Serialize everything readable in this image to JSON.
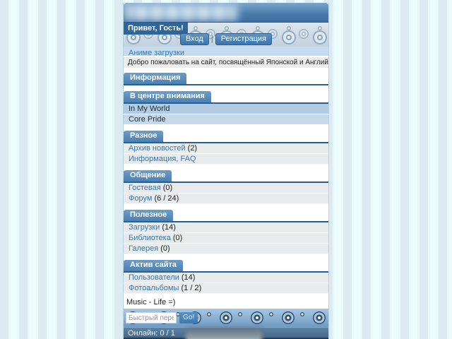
{
  "header": {
    "greeting": "Привет, Гость!",
    "login_label": "Вход",
    "divider": "|",
    "register_label": "Регистрация"
  },
  "intro": {
    "section_link": "Аниме загрузки",
    "welcome": "Добро пожаловать на сайт, посвящённый Японской и Английской музыке!"
  },
  "sections": [
    {
      "title": "Информация",
      "rows": []
    },
    {
      "title": "В центре внимания",
      "rows": [
        {
          "label": "In My World",
          "count": ""
        },
        {
          "label": "Core Pride",
          "count": ""
        }
      ]
    },
    {
      "title": "Разное",
      "rows": [
        {
          "label": "Архив новостей",
          "count": "(2)"
        },
        {
          "label": "Информация, FAQ",
          "count": ""
        }
      ]
    },
    {
      "title": "Общение",
      "rows": [
        {
          "label": "Гостевая",
          "count": "(0)"
        },
        {
          "label": "Форум",
          "count": "(6 / 24)"
        }
      ]
    },
    {
      "title": "Полезное",
      "rows": [
        {
          "label": "Загрузки",
          "count": "(14)"
        },
        {
          "label": "Библиотека",
          "count": "(0)"
        },
        {
          "label": "Галерея",
          "count": "(0)"
        }
      ]
    },
    {
      "title": "Актив сайта",
      "rows": [
        {
          "label": "Пользователи",
          "count": "(14)"
        },
        {
          "label": "Фотоальбомы",
          "count": "(1 / 2)"
        }
      ]
    }
  ],
  "slogan": "Music - Life =)",
  "footer": {
    "quick_nav_value": "Быстрый переход",
    "go_label": "Go!",
    "online": "Онлайн: 0 / 1"
  },
  "colors": {
    "accent": "#4a81b2",
    "link": "#3d76a8",
    "section_rule": "#2a5f93",
    "online_bar": "#44688a",
    "stripe_light": "#ebfdfe",
    "stripe_dark": "#dcebf1"
  }
}
